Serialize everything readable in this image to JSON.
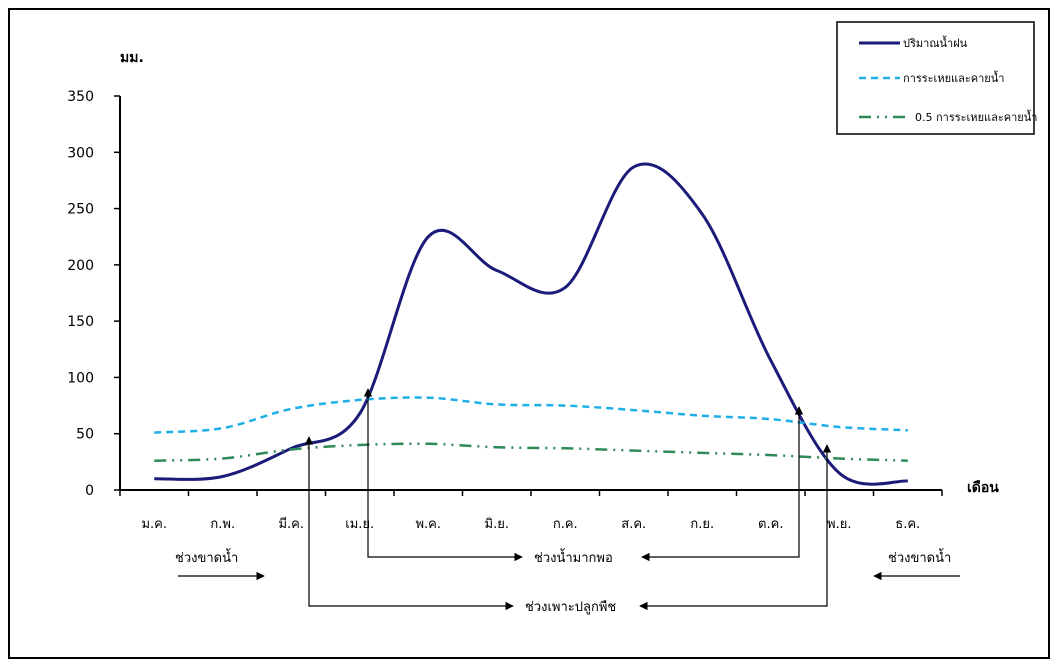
{
  "chart_data": {
    "type": "line",
    "ylabel": "มม.",
    "xlabel": "เดือน",
    "ylim": [
      0,
      350
    ],
    "yticks": [
      0,
      50,
      100,
      150,
      200,
      250,
      300,
      350
    ],
    "categories": [
      "ม.ค.",
      "ก.พ.",
      "มี.ค.",
      "เม.ย.",
      "พ.ค.",
      "มิ.ย.",
      "ก.ค.",
      "ส.ค.",
      "ก.ย.",
      "ต.ค.",
      "พ.ย.",
      "ธ.ค."
    ],
    "series": [
      {
        "name": "ปริมาณน้ำฝน",
        "style": "solid",
        "color": "#1b1b7a",
        "x": [
          "ม.ค.",
          "ก.พ.",
          "มี.ค.",
          "เม.ย.",
          "พ.ค.",
          "มิ.ย.",
          "ก.ค.",
          "ส.ค.",
          "ก.ย.",
          "ต.ค.",
          "พ.ย.",
          "ธ.ค."
        ],
        "values": [
          10,
          12,
          37,
          68,
          225,
          195,
          180,
          287,
          245,
          115,
          15,
          8
        ]
      },
      {
        "name": "การระเหยและคายน้ำ",
        "style": "dashed",
        "color": "#1eaee8",
        "x": [
          "ม.ค.",
          "ก.พ.",
          "มี.ค.",
          "เม.ย.",
          "พ.ค.",
          "มิ.ย.",
          "ก.ค.",
          "ส.ค.",
          "ก.ย.",
          "ต.ค.",
          "พ.ย.",
          "ธ.ค."
        ],
        "values": [
          51,
          55,
          72,
          80,
          82,
          76,
          75,
          71,
          66,
          63,
          56,
          53
        ]
      },
      {
        "name": "0.5 การระเหยและคายน้ำ",
        "style": "dash-dot-dot",
        "color": "#2e8b57",
        "x": [
          "ม.ค.",
          "ก.พ.",
          "มี.ค.",
          "เม.ย.",
          "พ.ค.",
          "มิ.ย.",
          "ก.ค.",
          "ส.ค.",
          "ก.ย.",
          "ต.ค.",
          "พ.ย.",
          "ธ.ค."
        ],
        "values": [
          26,
          28,
          36,
          40,
          41,
          38,
          37,
          35,
          33,
          31,
          28,
          26
        ]
      }
    ],
    "legend_position": "top-right",
    "grid": false,
    "annotations": {
      "dry_left": "ช่วงขาดน้ำ",
      "dry_right": "ช่วงขาดน้ำ",
      "wet": "ช่วงน้ำมากพอ",
      "growing": "ช่วงเพาะปลูกพืช"
    }
  }
}
